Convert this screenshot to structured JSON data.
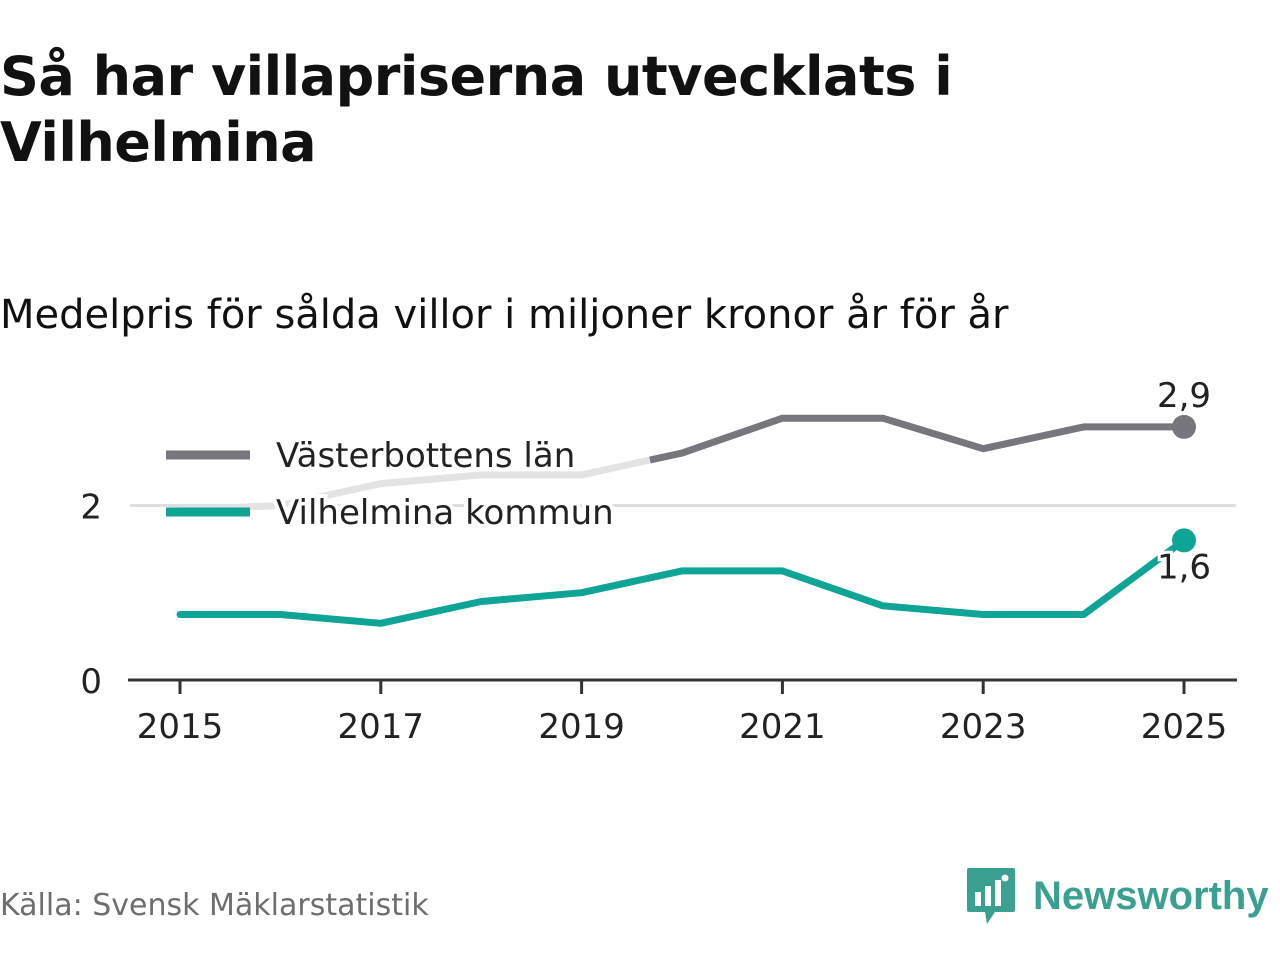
{
  "title": "Så har villapriserna utvecklats i Vilhelmina",
  "subtitle": "Medelpris för sålda villor i miljoner kronor år för år",
  "source": "Källa: Svensk Mäklarstatistik",
  "brand": {
    "name": "Newsworthy",
    "icon": "bar-chart-speech-icon"
  },
  "colors": {
    "region": "#76767c",
    "region_faded": "#e3e3e3",
    "municipality": "#0fa596",
    "axis": "#333333",
    "grid": "#dedede",
    "brand": "#3aa191"
  },
  "chart_data": {
    "type": "line",
    "title": "Så har villapriserna utvecklats i Vilhelmina",
    "subtitle": "Medelpris för sålda villor i miljoner kronor år för år",
    "x": [
      2015,
      2016,
      2017,
      2018,
      2019,
      2020,
      2021,
      2022,
      2023,
      2024,
      2025
    ],
    "xticks": [
      "2015",
      "2017",
      "2019",
      "2021",
      "2023",
      "2025"
    ],
    "yticks": [
      "0",
      "2"
    ],
    "ylim": [
      0,
      3.3
    ],
    "grid": true,
    "legend_position": "top-left",
    "series": [
      {
        "name": "Västerbottens län",
        "values": [
          1.95,
          2.0,
          2.25,
          2.35,
          2.35,
          2.6,
          3.0,
          3.0,
          2.65,
          2.9,
          2.9
        ],
        "end_label": "2,9"
      },
      {
        "name": "Vilhelmina kommun",
        "values": [
          0.75,
          0.75,
          0.65,
          0.9,
          1.0,
          1.25,
          1.25,
          0.85,
          0.75,
          0.75,
          1.6
        ],
        "end_label": "1,6"
      }
    ]
  }
}
